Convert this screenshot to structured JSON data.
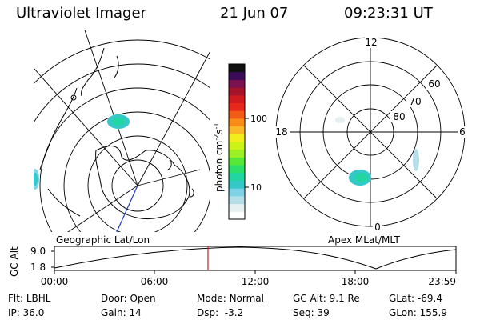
{
  "header": {
    "title": "Ultraviolet Imager",
    "date": "21 Jun 07",
    "time": "09:23:31 UT"
  },
  "panels": {
    "left_label": "Geographic Lat/Lon",
    "right_label": "Apex MLat/MLT"
  },
  "colorbar": {
    "unit_label": "photon cm",
    "unit_exp1": "-2",
    "unit_s": "s",
    "unit_exp2": "-1",
    "ticks": [
      "100",
      "10"
    ],
    "colors": [
      "#ffffff",
      "#e6f0f0",
      "#b4dfe8",
      "#7fd3e6",
      "#34c8c8",
      "#22d6a4",
      "#2be06a",
      "#58e83a",
      "#9cf024",
      "#cdf217",
      "#f3ee1b",
      "#fbb92a",
      "#f98c16",
      "#f25c16",
      "#e8281a",
      "#cf1a1f",
      "#a3142a",
      "#7a1150",
      "#3b0b5a",
      "#111111"
    ]
  },
  "apex_grid": {
    "lat_labels": [
      "80",
      "70",
      "60"
    ],
    "mlt_labels": [
      "12",
      "18",
      "6",
      "0"
    ]
  },
  "timeline": {
    "axis_label": "GC Alt",
    "y_ticks": [
      "9.0",
      "1.8"
    ],
    "x_ticks": [
      "00:00",
      "06:00",
      "12:00",
      "18:00",
      "23:59"
    ]
  },
  "footer": {
    "row1": [
      {
        "label": "Flt:",
        "value": "LBHL"
      },
      {
        "label": "Door:",
        "value": "Open"
      },
      {
        "label": "Mode:",
        "value": "Normal"
      },
      {
        "label": "GC Alt:",
        "value": "9.1 Re"
      },
      {
        "label": "GLat:",
        "value": "-69.4"
      }
    ],
    "row2": [
      {
        "label": "IP:",
        "value": "36.0"
      },
      {
        "label": "Gain:",
        "value": "14"
      },
      {
        "label": "Dsp:",
        "value": "-3.2"
      },
      {
        "label": "Seq:",
        "value": "39"
      },
      {
        "label": "GLon:",
        "value": "155.9"
      }
    ]
  },
  "colors": {
    "line": "#000000",
    "cursor": "#cc2222",
    "meridian": "#1f3fb0"
  }
}
